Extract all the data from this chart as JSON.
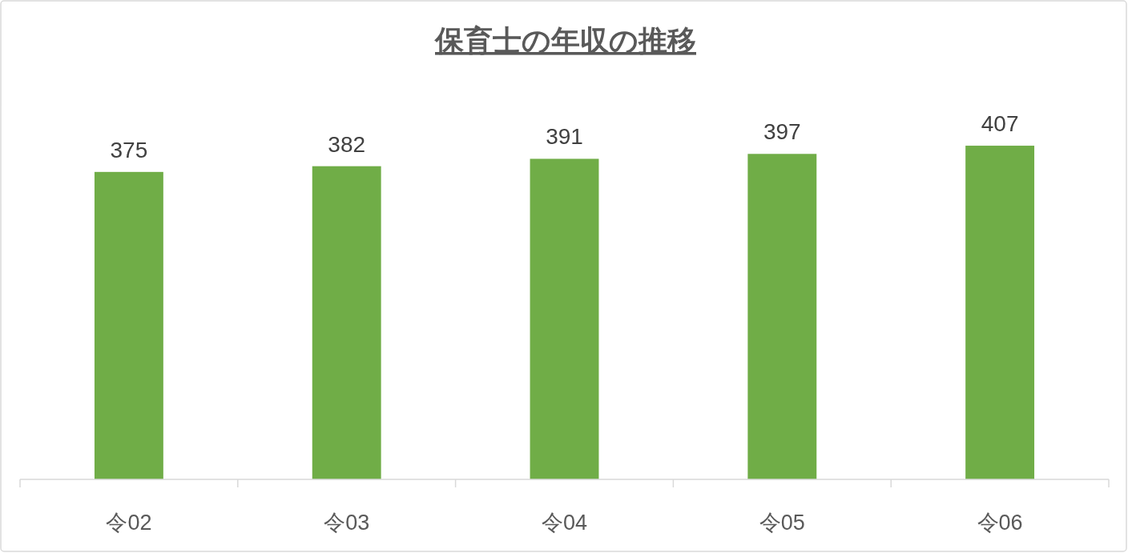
{
  "chart_data": {
    "type": "bar",
    "title": "保育士の年収の推移",
    "categories": [
      "令02",
      "令03",
      "令04",
      "令05",
      "令06"
    ],
    "values": [
      375,
      382,
      391,
      397,
      407
    ],
    "color": "#70ad47",
    "data_labels": true
  }
}
